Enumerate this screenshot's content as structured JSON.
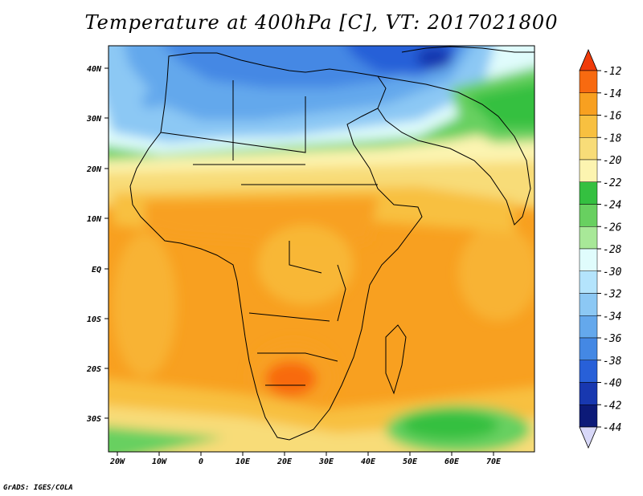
{
  "title": "Temperature at 400hPa [C], VT: 2017021800",
  "footer": "GrADS: IGES/COLA",
  "map": {
    "lat_ticks": [
      "40N",
      "30N",
      "20N",
      "10N",
      "EQ",
      "10S",
      "20S",
      "30S"
    ],
    "lon_ticks": [
      "20W",
      "10W",
      "0",
      "10E",
      "20E",
      "30E",
      "40E",
      "50E",
      "60E",
      "70E"
    ]
  },
  "colorbar": {
    "levels": [
      "-12",
      "-14",
      "-16",
      "-18",
      "-20",
      "-22",
      "-24",
      "-26",
      "-28",
      "-30",
      "-32",
      "-34",
      "-36",
      "-38",
      "-40",
      "-42",
      "-44"
    ],
    "colors": {
      "warmest": "#f03b0a",
      "minus12_14": "#f86a10",
      "minus14_16": "#f8a020",
      "minus16_18": "#f8c040",
      "minus18_20": "#f8dc78",
      "minus20_22": "#fcf4b0",
      "minus22_24": "#34c040",
      "minus24_26": "#68d060",
      "minus26_28": "#a8e898",
      "minus28_30": "#e0fcfc",
      "minus30_32": "#b4e4fc",
      "minus32_34": "#8cc8f4",
      "minus34_36": "#64a8ec",
      "minus36_38": "#4488e4",
      "minus38_40": "#2860d8",
      "minus40_42": "#1838b0",
      "minus42_44": "#0c1a78",
      "coldest": "#d8d8f8"
    }
  }
}
